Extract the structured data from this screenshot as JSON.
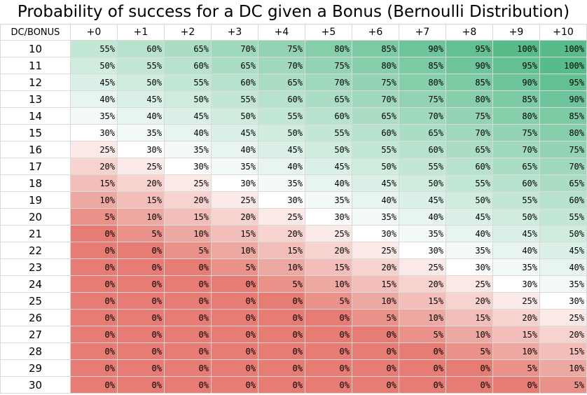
{
  "chart_data": {
    "type": "heatmap",
    "title": "Probability of success for a DC given a Bonus (Bernoulli Distribution)",
    "corner_label": "DC/BONUS",
    "columns": [
      "+0",
      "+1",
      "+2",
      "+3",
      "+4",
      "+5",
      "+6",
      "+7",
      "+8",
      "+9",
      "+10"
    ],
    "rows": [
      {
        "dc": "10",
        "values": [
          55,
          60,
          65,
          70,
          75,
          80,
          85,
          90,
          95,
          100,
          100
        ]
      },
      {
        "dc": "11",
        "values": [
          50,
          55,
          60,
          65,
          70,
          75,
          80,
          85,
          90,
          95,
          100
        ]
      },
      {
        "dc": "12",
        "values": [
          45,
          50,
          55,
          60,
          65,
          70,
          75,
          80,
          85,
          90,
          95
        ]
      },
      {
        "dc": "13",
        "values": [
          40,
          45,
          50,
          55,
          60,
          65,
          70,
          75,
          80,
          85,
          90
        ]
      },
      {
        "dc": "14",
        "values": [
          35,
          40,
          45,
          50,
          55,
          60,
          65,
          70,
          75,
          80,
          85
        ]
      },
      {
        "dc": "15",
        "values": [
          30,
          35,
          40,
          45,
          50,
          55,
          60,
          65,
          70,
          75,
          80
        ]
      },
      {
        "dc": "16",
        "values": [
          25,
          30,
          35,
          40,
          45,
          50,
          55,
          60,
          65,
          70,
          75
        ]
      },
      {
        "dc": "17",
        "values": [
          20,
          25,
          30,
          35,
          40,
          45,
          50,
          55,
          60,
          65,
          70
        ]
      },
      {
        "dc": "18",
        "values": [
          15,
          20,
          25,
          30,
          35,
          40,
          45,
          50,
          55,
          60,
          65
        ]
      },
      {
        "dc": "19",
        "values": [
          10,
          15,
          20,
          25,
          30,
          35,
          40,
          45,
          50,
          55,
          60
        ]
      },
      {
        "dc": "20",
        "values": [
          5,
          10,
          15,
          20,
          25,
          30,
          35,
          40,
          45,
          50,
          55
        ]
      },
      {
        "dc": "21",
        "values": [
          0,
          5,
          10,
          15,
          20,
          25,
          30,
          35,
          40,
          45,
          50
        ]
      },
      {
        "dc": "22",
        "values": [
          0,
          0,
          5,
          10,
          15,
          20,
          25,
          30,
          35,
          40,
          45
        ]
      },
      {
        "dc": "23",
        "values": [
          0,
          0,
          0,
          5,
          10,
          15,
          20,
          25,
          30,
          35,
          40
        ]
      },
      {
        "dc": "24",
        "values": [
          0,
          0,
          0,
          0,
          5,
          10,
          15,
          20,
          25,
          30,
          35
        ]
      },
      {
        "dc": "25",
        "values": [
          0,
          0,
          0,
          0,
          0,
          5,
          10,
          15,
          20,
          25,
          30
        ]
      },
      {
        "dc": "26",
        "values": [
          0,
          0,
          0,
          0,
          0,
          0,
          5,
          10,
          15,
          20,
          25
        ]
      },
      {
        "dc": "27",
        "values": [
          0,
          0,
          0,
          0,
          0,
          0,
          0,
          5,
          10,
          15,
          20
        ]
      },
      {
        "dc": "28",
        "values": [
          0,
          0,
          0,
          0,
          0,
          0,
          0,
          0,
          5,
          10,
          15
        ]
      },
      {
        "dc": "29",
        "values": [
          0,
          0,
          0,
          0,
          0,
          0,
          0,
          0,
          0,
          5,
          10
        ]
      },
      {
        "dc": "30",
        "values": [
          0,
          0,
          0,
          0,
          0,
          0,
          0,
          0,
          0,
          0,
          5
        ]
      }
    ],
    "value_suffix": "%",
    "color_scale": {
      "low": "#e67c73",
      "mid": "#ffffff",
      "high": "#57bb8a",
      "low_value": 0,
      "mid_value": 30,
      "high_value": 100
    },
    "grid": true
  }
}
